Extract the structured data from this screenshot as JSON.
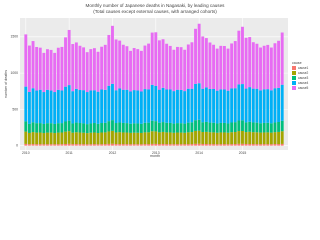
{
  "chart_data": {
    "type": "stacked-bar",
    "title": "Monthly number of Japanese deaths in Nagasaki, by leading causes",
    "subtitle": "(Total causes except external causes, with arranged cohorts)",
    "x_label": "month",
    "y_label": "number of deaths",
    "legend_title": "cause",
    "categories": [
      "2010",
      null,
      null,
      null,
      null,
      null,
      null,
      null,
      null,
      null,
      null,
      null,
      "2011",
      null,
      null,
      null,
      null,
      null,
      null,
      null,
      null,
      null,
      null,
      null,
      "2012",
      null,
      null,
      null,
      null,
      null,
      null,
      null,
      null,
      null,
      null,
      null,
      "2013",
      null,
      null,
      null,
      null,
      null,
      null,
      null,
      null,
      null,
      null,
      null,
      "2014",
      null,
      null,
      null,
      null,
      null,
      null,
      null,
      null,
      null,
      null,
      null,
      "2015",
      null,
      null,
      null,
      null,
      null,
      null,
      null,
      null,
      null,
      null,
      null
    ],
    "series": [
      {
        "name": "cause1",
        "color": "#F8766D",
        "values": [
          24,
          20,
          22,
          20,
          21,
          19,
          20,
          20,
          19,
          20,
          21,
          23,
          25,
          21,
          22,
          21,
          20,
          19,
          20,
          21,
          19,
          20,
          21,
          24,
          26,
          22,
          22,
          21,
          21,
          20,
          20,
          20,
          19,
          21,
          21,
          24,
          24,
          22,
          23,
          21,
          21,
          20,
          21,
          20,
          20,
          21,
          22,
          25,
          26,
          23,
          23,
          22,
          21,
          20,
          21,
          21,
          20,
          21,
          22,
          25,
          25,
          23,
          23,
          22,
          21,
          21,
          21,
          21,
          20,
          22,
          22,
          24
        ]
      },
      {
        "name": "cause2",
        "color": "#A3A500",
        "values": [
          170,
          155,
          165,
          160,
          160,
          155,
          160,
          160,
          155,
          160,
          160,
          170,
          175,
          158,
          163,
          160,
          158,
          154,
          158,
          160,
          155,
          161,
          162,
          172,
          178,
          160,
          164,
          161,
          160,
          156,
          159,
          158,
          156,
          162,
          163,
          175,
          172,
          162,
          166,
          162,
          161,
          157,
          160,
          160,
          157,
          163,
          165,
          178,
          180,
          165,
          167,
          163,
          162,
          158,
          161,
          161,
          158,
          164,
          166,
          176,
          177,
          164,
          168,
          164,
          163,
          159,
          161,
          162,
          159,
          164,
          167,
          175
        ]
      },
      {
        "name": "cause3",
        "color": "#00BF7D",
        "values": [
          140,
          125,
          135,
          130,
          130,
          125,
          130,
          130,
          125,
          130,
          130,
          140,
          145,
          127,
          133,
          131,
          129,
          124,
          128,
          131,
          126,
          131,
          132,
          142,
          148,
          130,
          134,
          131,
          130,
          126,
          129,
          128,
          126,
          132,
          133,
          145,
          142,
          132,
          136,
          132,
          131,
          127,
          130,
          130,
          127,
          133,
          135,
          148,
          150,
          135,
          137,
          133,
          132,
          128,
          131,
          131,
          128,
          134,
          136,
          146,
          147,
          134,
          138,
          134,
          133,
          129,
          131,
          132,
          129,
          134,
          137,
          145
        ]
      },
      {
        "name": "cause4",
        "color": "#00B0F6",
        "values": [
          480,
          440,
          470,
          450,
          460,
          440,
          460,
          450,
          440,
          460,
          450,
          480,
          490,
          445,
          465,
          455,
          458,
          442,
          455,
          452,
          444,
          462,
          455,
          488,
          500,
          452,
          468,
          458,
          460,
          445,
          458,
          455,
          446,
          465,
          460,
          495,
          485,
          456,
          472,
          460,
          462,
          448,
          460,
          458,
          448,
          468,
          463,
          500,
          505,
          462,
          476,
          464,
          466,
          452,
          463,
          461,
          452,
          470,
          468,
          498,
          500,
          466,
          478,
          466,
          468,
          454,
          464,
          464,
          455,
          472,
          470,
          496
        ]
      },
      {
        "name": "cause5",
        "color": "#E76BF3",
        "values": [
          720,
          640,
          650,
          600,
          580,
          540,
          560,
          560,
          540,
          580,
          600,
          680,
          760,
          650,
          640,
          610,
          590,
          550,
          570,
          580,
          550,
          590,
          620,
          700,
          800,
          700,
          660,
          620,
          600,
          560,
          580,
          570,
          560,
          600,
          630,
          720,
          740,
          680,
          670,
          630,
          600,
          570,
          590,
          590,
          570,
          610,
          640,
          760,
          820,
          720,
          680,
          640,
          610,
          580,
          600,
          600,
          580,
          620,
          650,
          740,
          790,
          700,
          690,
          640,
          620,
          590,
          600,
          610,
          590,
          620,
          650,
          720
        ]
      }
    ],
    "ylim": [
      -60,
      1760
    ],
    "yticks": [
      0,
      500,
      1000,
      1500
    ],
    "grid": true
  }
}
